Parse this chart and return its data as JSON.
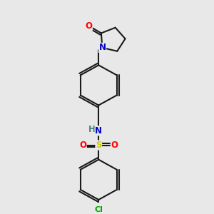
{
  "bg_color": "#e8e8e8",
  "bond_color": "#1a1a1a",
  "bond_width": 1.5,
  "atom_colors": {
    "N": "#0000cc",
    "O": "#ff0000",
    "S": "#cccc00",
    "Cl": "#00aa00",
    "H": "#4a8080",
    "C": "#1a1a1a"
  },
  "font_size_atom": 8.5
}
